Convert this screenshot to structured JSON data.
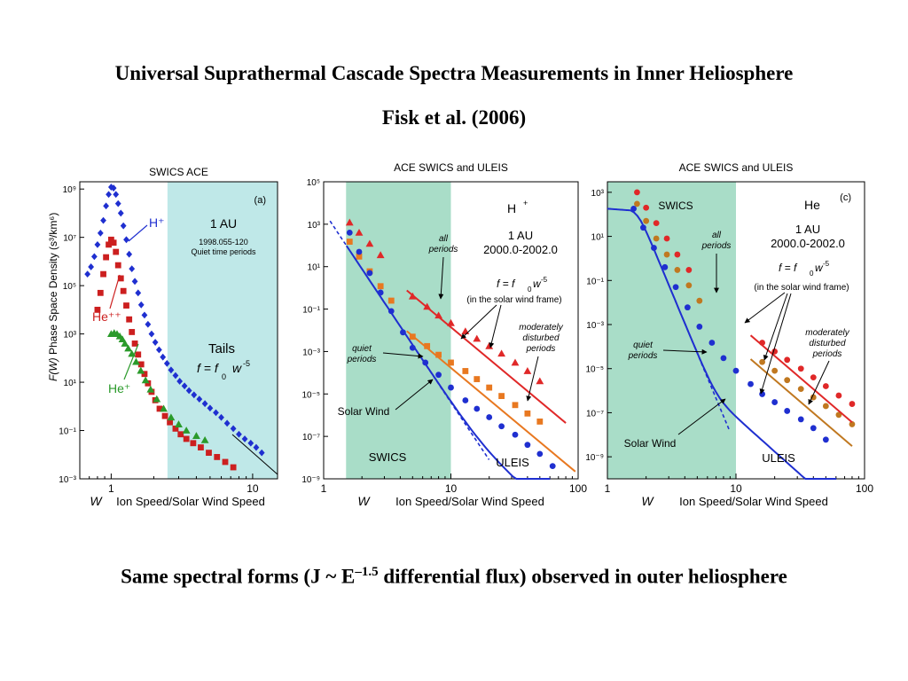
{
  "slide": {
    "title": "Universal Suprathermal Cascade Spectra Measurements in Inner Heliosphere",
    "subtitle": "Fisk et al. (2006)",
    "caption_pre": "Same spectral forms (J ~ E",
    "caption_exp": "–1.5",
    "caption_post": " differential flux) observed in outer heliosphere"
  },
  "colors": {
    "shade": "#bfe8e8",
    "shade_green": "#a9ddc8",
    "h": "#1f2fd0",
    "he_pp": "#cc1f1f",
    "he_p": "#2a9a2a",
    "orange": "#e87820",
    "red": "#e02828",
    "tan": "#c07820"
  },
  "chart_data": [
    {
      "type": "scatter",
      "title": "SWICS  ACE",
      "panel_label": "(a)",
      "xlabel_w": "W",
      "xlabel": "Ion Speed/Solar Wind Speed",
      "ylabel_fw": "F(W)",
      "ylabel": "Phase Space Density",
      "ylabel_units": "(s³/km⁶)",
      "x_log": true,
      "y_log": true,
      "xlim": [
        0.6,
        15
      ],
      "ylim": [
        0.001,
        2000000000.0
      ],
      "x_ticks": [
        {
          "v": 1,
          "label": "1"
        },
        {
          "v": 10,
          "label": "10"
        }
      ],
      "y_ticks": [
        {
          "v": 1000000000.0,
          "label": "10⁹"
        },
        {
          "v": 10000000.0,
          "label": "10⁷"
        },
        {
          "v": 100000.0,
          "label": "10⁵"
        },
        {
          "v": 1000.0,
          "label": "10³"
        },
        {
          "v": 10,
          "label": "10¹"
        },
        {
          "v": 0.1,
          "label": "10⁻¹"
        },
        {
          "v": 0.001,
          "label": "10⁻³"
        }
      ],
      "shaded_region": {
        "x": [
          2.5,
          15
        ]
      },
      "annotations": [
        "1 AU",
        "1998.055-120",
        "Quiet time periods",
        "Tails",
        "f = f",
        "0",
        "w",
        "-5"
      ],
      "series": [
        {
          "name": "H⁺",
          "color": "#1f2fd0",
          "marker": "diamond",
          "x": [
            0.68,
            0.72,
            0.76,
            0.8,
            0.84,
            0.88,
            0.92,
            0.96,
            1.0,
            1.04,
            1.08,
            1.12,
            1.17,
            1.22,
            1.28,
            1.34,
            1.4,
            1.47,
            1.55,
            1.63,
            1.72,
            1.82,
            1.93,
            2.05,
            2.18,
            2.32,
            2.48,
            2.65,
            2.85,
            3.05,
            3.3,
            3.55,
            3.85,
            4.2,
            4.6,
            5.0,
            5.5,
            6.0,
            6.6,
            7.3,
            8.0,
            8.8,
            9.7,
            10.6,
            11.6
          ],
          "y": [
            300000.0,
            600000.0,
            1600000.0,
            5000000.0,
            15000000.0,
            50000000.0,
            200000000.0,
            600000000.0,
            1200000000.0,
            1100000000.0,
            600000000.0,
            250000000.0,
            100000000.0,
            30000000.0,
            8000000.0,
            2000000.0,
            500000.0,
            150000.0,
            50000.0,
            16000.0,
            6000.0,
            2500.0,
            1000.0,
            450,
            220,
            110,
            60,
            32,
            19,
            11,
            7,
            4.5,
            3,
            2,
            1.3,
            0.85,
            0.55,
            0.35,
            0.2,
            0.12,
            0.07,
            0.045,
            0.03,
            0.02,
            0.012
          ]
        },
        {
          "name": "He⁺⁺",
          "color": "#cc1f1f",
          "marker": "square",
          "x": [
            0.8,
            0.84,
            0.88,
            0.92,
            0.96,
            1.0,
            1.04,
            1.08,
            1.12,
            1.17,
            1.22,
            1.28,
            1.34,
            1.4,
            1.47,
            1.55,
            1.63,
            1.72,
            1.82,
            1.93,
            2.05,
            2.2,
            2.4,
            2.6,
            2.85,
            3.1,
            3.4,
            3.8,
            4.3,
            4.9,
            5.6,
            6.4,
            7.3
          ],
          "y": [
            10000.0,
            50000.0,
            300000.0,
            1500000.0,
            5000000.0,
            8000000.0,
            6000000.0,
            2500000.0,
            700000.0,
            200000.0,
            60000.0,
            15000.0,
            4000.0,
            1200.0,
            400,
            140,
            55,
            22,
            9,
            4,
            1.8,
            0.8,
            0.4,
            0.22,
            0.12,
            0.07,
            0.045,
            0.03,
            0.02,
            0.012,
            0.008,
            0.005,
            0.003
          ]
        },
        {
          "name": "He⁺",
          "color": "#2a9a2a",
          "marker": "triangle",
          "x": [
            1.0,
            1.05,
            1.1,
            1.15,
            1.2,
            1.25,
            1.32,
            1.4,
            1.5,
            1.62,
            1.75,
            1.9,
            2.1,
            2.35,
            2.65,
            3.0,
            3.4,
            4.0,
            4.6
          ],
          "y": [
            1000,
            1100,
            1000,
            800,
            600,
            400,
            250,
            150,
            70,
            30,
            12,
            5,
            2,
            0.8,
            0.35,
            0.18,
            0.1,
            0.06,
            0.04
          ]
        }
      ]
    },
    {
      "type": "scatter",
      "title": "ACE SWICS and ULEIS",
      "species": "H",
      "species_sup": "+",
      "xlabel_w": "W",
      "xlabel": "Ion Speed/Solar Wind Speed",
      "x_log": true,
      "y_log": true,
      "xlim": [
        1,
        100
      ],
      "ylim": [
        1e-09,
        100000.0
      ],
      "x_ticks": [
        {
          "v": 1,
          "label": "1"
        },
        {
          "v": 10,
          "label": "10"
        },
        {
          "v": 100,
          "label": "100"
        }
      ],
      "y_ticks": [
        {
          "v": 100000.0,
          "label": "10⁵"
        },
        {
          "v": 1000.0,
          "label": "10³"
        },
        {
          "v": 10,
          "label": "10¹"
        },
        {
          "v": 0.1,
          "label": "10⁻¹"
        },
        {
          "v": 0.001,
          "label": "10⁻³"
        },
        {
          "v": 1e-05,
          "label": "10⁻⁵"
        },
        {
          "v": 1e-07,
          "label": "10⁻⁷"
        },
        {
          "v": 1e-09,
          "label": "10⁻⁹"
        }
      ],
      "shaded_region": {
        "x": [
          1.5,
          10
        ]
      },
      "annotations": [
        "1 AU",
        "2000.0-2002.0",
        "f = f",
        "0",
        "w",
        "-5",
        "(in the solar wind frame)",
        "all",
        "periods",
        "moderately",
        "disturbed",
        "periods",
        "quiet",
        "periods",
        "Solar Wind",
        "SWICS",
        "ULEIS"
      ],
      "series": [
        {
          "name": "all periods",
          "color": "#e02828",
          "marker": "triangle",
          "x": [
            1.6,
            1.9,
            2.3,
            2.8,
            5,
            6.5,
            8,
            10,
            13,
            16,
            20,
            25,
            32,
            40,
            50
          ],
          "y": [
            1200,
            400,
            120,
            35,
            0.4,
            0.13,
            0.05,
            0.022,
            0.009,
            0.004,
            0.0018,
            0.0008,
            0.0003,
            0.00012,
            4e-05
          ]
        },
        {
          "name": "moderately disturbed periods",
          "color": "#e87820",
          "marker": "square",
          "x": [
            1.6,
            1.9,
            2.3,
            2.8,
            3.4,
            5,
            6.5,
            8,
            10,
            13,
            16,
            20,
            25,
            32,
            40,
            50
          ],
          "y": [
            150,
            30,
            6,
            1.2,
            0.25,
            0.005,
            0.0018,
            0.0007,
            0.0003,
            0.00012,
            5e-05,
            2e-05,
            8e-06,
            3e-06,
            1.2e-06,
            5e-07
          ]
        },
        {
          "name": "quiet periods",
          "color": "#1f2fd0",
          "marker": "circle",
          "x": [
            1.6,
            1.9,
            2.3,
            2.8,
            3.4,
            4.2,
            5,
            6.3,
            8,
            10,
            13,
            16,
            20,
            25,
            32,
            40,
            50,
            63
          ],
          "y": [
            400,
            50,
            5,
            0.6,
            0.08,
            0.008,
            0.0015,
            0.0003,
            8e-05,
            2e-05,
            5e-06,
            2e-06,
            8e-07,
            3e-07,
            1.2e-07,
            4e-08,
            1.5e-08,
            4e-09
          ]
        }
      ]
    },
    {
      "type": "scatter",
      "title": "ACE SWICS and ULEIS",
      "species": "He",
      "panel_label": "(c)",
      "xlabel_w": "W",
      "xlabel": "Ion Speed/Solar Wind Speed",
      "x_log": true,
      "y_log": true,
      "xlim": [
        1,
        100
      ],
      "ylim": [
        1e-10,
        3000.0
      ],
      "x_ticks": [
        {
          "v": 1,
          "label": "1"
        },
        {
          "v": 10,
          "label": "10"
        },
        {
          "v": 100,
          "label": "100"
        }
      ],
      "y_ticks": [
        {
          "v": 1000,
          "label": "10³"
        },
        {
          "v": 10,
          "label": "10¹"
        },
        {
          "v": 0.1,
          "label": "10⁻¹"
        },
        {
          "v": 0.001,
          "label": "10⁻³"
        },
        {
          "v": 1e-05,
          "label": "10⁻⁵"
        },
        {
          "v": 1e-07,
          "label": "10⁻⁷"
        },
        {
          "v": 1e-09,
          "label": "10⁻⁹"
        }
      ],
      "shaded_region": {
        "x": [
          1,
          10
        ]
      },
      "annotations": [
        "SWICS",
        "1 AU",
        "2000.0-2002.0",
        "f = f",
        "0",
        "w",
        "-5",
        "(in the solar wind frame)",
        "all",
        "periods",
        "moderately",
        "disturbed",
        "periods",
        "quiet",
        "periods",
        "Solar Wind",
        "ULEIS"
      ],
      "series": [
        {
          "name": "all periods",
          "color": "#e02828",
          "marker": "circle",
          "x": [
            1.7,
            2.0,
            2.4,
            2.9,
            3.5,
            4.3,
            16,
            20,
            25,
            32,
            40,
            50,
            63,
            80
          ],
          "y": [
            1000,
            200,
            40,
            8,
            1.5,
            0.3,
            0.00015,
            6e-05,
            2.5e-05,
            1e-05,
            4e-06,
            1.6e-06,
            6e-07,
            2.5e-07
          ]
        },
        {
          "name": "moderately disturbed periods",
          "color": "#c07820",
          "marker": "circle",
          "x": [
            1.7,
            2.0,
            2.4,
            2.9,
            3.5,
            4.3,
            5.2,
            16,
            20,
            25,
            32,
            40,
            50,
            63,
            80
          ],
          "y": [
            300,
            50,
            8,
            1.5,
            0.3,
            0.06,
            0.012,
            2e-05,
            8e-06,
            3e-06,
            1.2e-06,
            5e-07,
            2e-07,
            8e-08,
            3e-08
          ]
        },
        {
          "name": "quiet periods",
          "color": "#1f2fd0",
          "marker": "circle",
          "x": [
            1.6,
            1.9,
            2.3,
            2.8,
            3.4,
            4.2,
            5.2,
            6.5,
            8,
            10,
            13,
            16,
            20,
            25,
            32,
            40,
            50
          ],
          "y": [
            180,
            25,
            3,
            0.4,
            0.05,
            0.006,
            0.0008,
            0.00015,
            3e-05,
            8e-06,
            2e-06,
            7e-07,
            3e-07,
            1.2e-07,
            5e-08,
            2e-08,
            6e-09
          ]
        }
      ]
    }
  ]
}
